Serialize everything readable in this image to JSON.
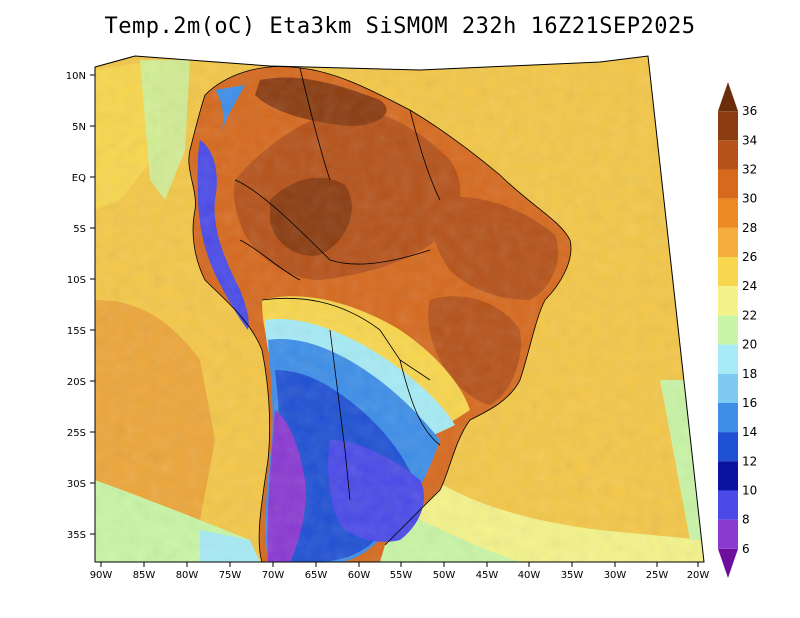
{
  "title": "Temp.2m(oC) Eta3km SiSMOM 232h 16Z21SEP2025",
  "lat_labels": [
    "10N",
    "5N",
    "EQ",
    "5S",
    "10S",
    "15S",
    "20S",
    "25S",
    "30S",
    "35S"
  ],
  "lon_labels": [
    "90W",
    "85W",
    "80W",
    "75W",
    "70W",
    "65W",
    "60W",
    "55W",
    "50W",
    "45W",
    "40W",
    "35W",
    "30W",
    "25W",
    "20W"
  ],
  "colorbar": {
    "labels": [
      "36",
      "34",
      "32",
      "30",
      "28",
      "26",
      "24",
      "22",
      "20",
      "18",
      "16",
      "14",
      "12",
      "10",
      "8",
      "6"
    ],
    "colors": [
      "#6a2e0d",
      "#8b3c10",
      "#b5521a",
      "#d6691e",
      "#ed8b23",
      "#f5ad3c",
      "#f8d64d",
      "#f4f38a",
      "#c9f5a6",
      "#a6ebf5",
      "#7fcaf5",
      "#3e8ee8",
      "#1f51d4",
      "#0a13a0",
      "#4a4ae8",
      "#8a3ad1",
      "#6e0f9c"
    ]
  },
  "map_colors": {
    "ocean_warm": "#f3c748",
    "ocean_hot": "#eda63a",
    "ocean_cool": "#c9f5a6",
    "ocean_cold": "#7fcaf5",
    "amazon": "#b5521a",
    "amazon_hot": "#8b3c10",
    "south_cold": "#1f51d4",
    "south_colder": "#5050e0",
    "andes": "#8a3ad1"
  }
}
